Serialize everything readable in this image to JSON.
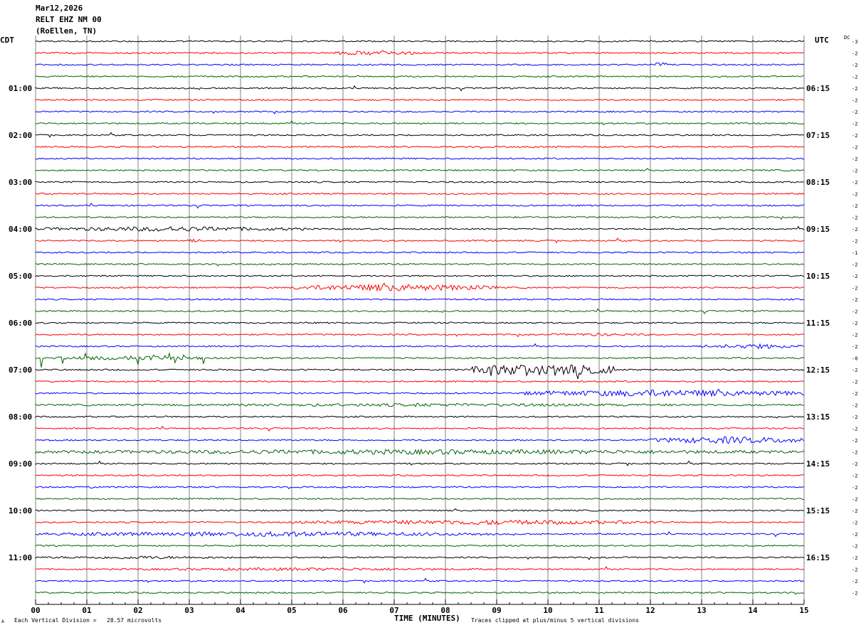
{
  "header": {
    "date": "Mar12,2026",
    "station": "RELT EHZ NM 00",
    "location": "(RoEllen, TN)"
  },
  "labels": {
    "left_tz": "CDT",
    "right_tz": "UTC",
    "dc": "DC",
    "x_title": "TIME (MINUTES)",
    "scale_note": "Each Vertical Division =   28.57 microvolts",
    "clip_note": "Traces clipped at plus/minus 5 vertical divisions",
    "corner_mark": "A"
  },
  "colors": {
    "background": "#ffffff",
    "grid": "#808080",
    "trace_colors": [
      "#000000",
      "#ff0000",
      "#0000ff",
      "#006400"
    ]
  },
  "chart_data": {
    "type": "line",
    "x_unit": "minutes",
    "xlim": [
      0,
      15
    ],
    "x_ticks": [
      "00",
      "01",
      "02",
      "03",
      "04",
      "05",
      "06",
      "07",
      "08",
      "09",
      "10",
      "11",
      "12",
      "13",
      "14",
      "15"
    ],
    "minutes_per_trace": 15,
    "trace_count": 48,
    "left_hour_labels": [
      "01:00",
      "02:00",
      "03:00",
      "04:00",
      "05:00",
      "06:00",
      "07:00",
      "08:00",
      "09:00",
      "10:00",
      "11:00"
    ],
    "right_hour_labels": [
      "06:15",
      "07:15",
      "08:15",
      "09:15",
      "10:15",
      "11:15",
      "12:15",
      "13:15",
      "14:15",
      "15:15",
      "16:15"
    ],
    "hour_label_every_n_traces": 4,
    "hour_label_first_trace": 4,
    "dc_offsets": [
      "-3",
      "-2",
      "-2",
      "-2",
      "-2",
      "-2",
      "-2",
      "-2",
      "-2",
      "-2",
      "-2",
      "-2",
      "-2",
      "-2",
      "-2",
      "-2",
      "-2",
      "-2",
      "-1",
      "-2",
      "-2",
      "-2",
      "-2",
      "-2",
      "-2",
      "-2",
      "-2",
      "-0",
      "-2",
      "-2",
      "-2",
      "-2",
      "-2",
      "-2",
      "-2",
      "-2",
      "-2",
      "-2",
      "-2",
      "-2",
      "-2",
      "-2",
      "-2",
      "-2",
      "-2",
      "-2",
      "-2",
      "-2"
    ],
    "seismic_events": [
      {
        "trace": 1,
        "start_min": 5.8,
        "end_min": 7.6,
        "strength": "moderate"
      },
      {
        "trace": 2,
        "start_min": 12.0,
        "end_min": 12.5,
        "strength": "moderate"
      },
      {
        "trace": 16,
        "start_min": 0.0,
        "end_min": 5.3,
        "strength": "moderate"
      },
      {
        "trace": 17,
        "start_min": 2.9,
        "end_min": 3.3,
        "strength": "small"
      },
      {
        "trace": 21,
        "start_min": 5.0,
        "end_min": 9.0,
        "strength": "strong"
      },
      {
        "trace": 25,
        "start_min": 10.0,
        "end_min": 12.0,
        "strength": "small"
      },
      {
        "trace": 26,
        "start_min": 13.0,
        "end_min": 15.0,
        "strength": "moderate"
      },
      {
        "trace": 27,
        "start_min": 0.0,
        "end_min": 3.5,
        "strength": "spikes"
      },
      {
        "trace": 28,
        "start_min": 8.5,
        "end_min": 11.3,
        "strength": "burst"
      },
      {
        "trace": 30,
        "start_min": 9.5,
        "end_min": 15.0,
        "strength": "strong"
      },
      {
        "trace": 31,
        "start_min": 0.0,
        "end_min": 15.0,
        "strength": "small"
      },
      {
        "trace": 34,
        "start_min": 12.0,
        "end_min": 15.0,
        "strength": "strong"
      },
      {
        "trace": 35,
        "start_min": 0.0,
        "end_min": 15.0,
        "strength": "moderate"
      },
      {
        "trace": 38,
        "start_min": 1.0,
        "end_min": 1.2,
        "strength": "small"
      },
      {
        "trace": 41,
        "start_min": 5.0,
        "end_min": 12.2,
        "strength": "moderate"
      },
      {
        "trace": 42,
        "start_min": 0.0,
        "end_min": 9.0,
        "strength": "moderate"
      },
      {
        "trace": 44,
        "start_min": 0.0,
        "end_min": 4.0,
        "strength": "small"
      },
      {
        "trace": 45,
        "start_min": 1.5,
        "end_min": 9.0,
        "strength": "small"
      }
    ],
    "grid": true
  }
}
